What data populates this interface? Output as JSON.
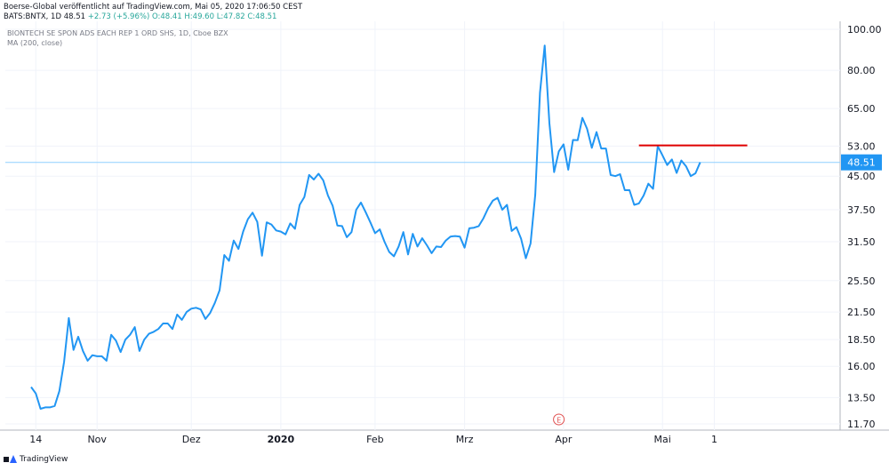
{
  "header": {
    "line1": "Boerse-Global veröffentlicht auf TradingView.com, Mai 05, 2020 17:06:50 CEST",
    "symbol": "BATS:BNTX, 1D 48.51",
    "change": "+2.73 (+5.96%)",
    "ohlc": "O:48.41 H:49.60 L:47.82 C:48.51"
  },
  "legend": {
    "title": "BIONTECH SE SPON ADS EACH REP 1 ORD SHS, 1D, Cboe BZX",
    "indicator": "MA (200, close)"
  },
  "footer": {
    "brand": "TradingView"
  },
  "colors": {
    "line": "#2196f3",
    "last_price": "#2196f3",
    "resistance": "#e00000",
    "earnings": "#e05050"
  },
  "chart_data": {
    "type": "line",
    "title": "BIONTECH SE SPON ADS EACH REP 1 ORD SHS, 1D, Cboe BZX",
    "scale": "log",
    "y_ticks": [
      11.7,
      13.5,
      16.0,
      18.5,
      21.5,
      25.5,
      31.5,
      37.5,
      45.0,
      53.0,
      65.0,
      80.0,
      100.0
    ],
    "x_ticks": [
      {
        "label": "14",
        "index": 1
      },
      {
        "label": "Nov",
        "index": 14
      },
      {
        "label": "Dez",
        "index": 34
      },
      {
        "label": "2020",
        "index": 53
      },
      {
        "label": "Feb",
        "index": 73
      },
      {
        "label": "Mrz",
        "index": 92
      },
      {
        "label": "Apr",
        "index": 113
      },
      {
        "label": "Mai",
        "index": 134
      },
      {
        "label": "1",
        "index": 145
      }
    ],
    "series": [
      {
        "values": [
          14.3,
          13.8,
          12.7,
          12.8,
          12.8,
          12.9,
          14.0,
          16.4,
          20.8,
          17.5,
          18.8,
          17.4,
          16.5,
          17.0,
          16.9,
          16.9,
          16.5,
          19.0,
          18.4,
          17.3,
          18.5,
          19.0,
          19.8,
          17.4,
          18.5,
          19.1,
          19.3,
          19.6,
          20.2,
          20.2,
          19.6,
          21.2,
          20.6,
          21.5,
          21.9,
          22.0,
          21.8,
          20.7,
          21.4,
          22.6,
          24.2,
          29.3,
          28.4,
          31.7,
          30.3,
          33.3,
          35.6,
          36.9,
          35.1,
          29.2,
          35.0,
          34.6,
          33.5,
          33.3,
          32.8,
          34.8,
          33.8,
          38.5,
          40.2,
          45.3,
          44.2,
          45.6,
          44.0,
          40.5,
          38.3,
          34.4,
          34.3,
          32.3,
          33.2,
          37.5,
          39.0,
          37.0,
          35.0,
          33.0,
          33.7,
          31.5,
          29.8,
          29.1,
          30.7,
          33.2,
          29.4,
          32.9,
          30.7,
          32.1,
          30.9,
          29.6,
          30.7,
          30.6,
          31.7,
          32.4,
          32.5,
          32.4,
          30.5,
          33.9,
          34.0,
          34.3,
          35.8,
          37.8,
          39.4,
          40.0,
          37.5,
          38.5,
          33.4,
          34.1,
          32.0,
          28.8,
          31.2,
          40.7,
          70.8,
          91.6,
          60.0,
          46.0,
          51.5,
          53.5,
          46.6,
          54.8,
          54.7,
          61.8,
          58.2,
          52.5,
          57.2,
          52.3,
          52.3,
          45.3,
          45.0,
          45.5,
          41.7,
          41.7,
          38.5,
          38.8,
          40.5,
          43.2,
          42.0,
          53.0,
          50.4,
          47.8,
          49.3,
          45.8,
          49.0,
          47.5,
          45.0,
          45.7,
          48.51
        ]
      }
    ],
    "last_price": 48.51,
    "resistance": {
      "value": 53.2,
      "from_index": 129,
      "to_index": 152
    },
    "earnings_marker": {
      "label": "E",
      "index": 112
    }
  }
}
